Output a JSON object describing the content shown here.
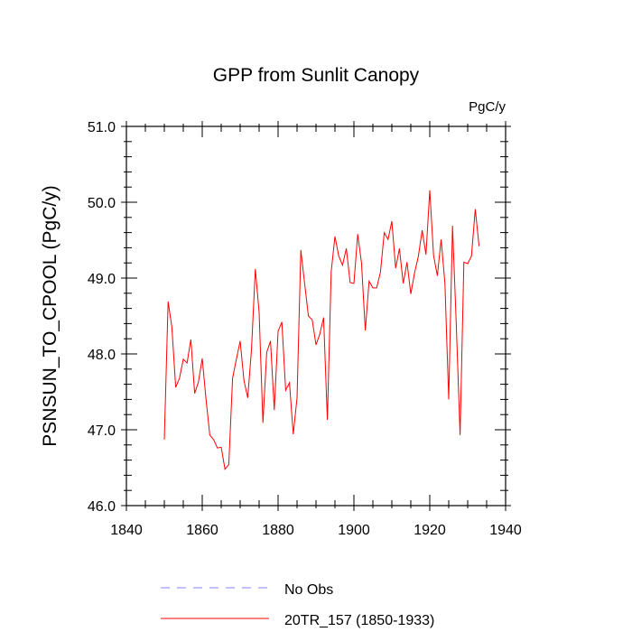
{
  "chart_data": {
    "type": "line",
    "title": "GPP from Sunlit Canopy",
    "units": "PgC/y",
    "ylabel": "PSNSUN_TO_CPOOL  (PgC/y)",
    "xlabel": "",
    "xlim": [
      1840,
      1940
    ],
    "ylim": [
      46.0,
      51.0
    ],
    "xticks": [
      1840,
      1860,
      1880,
      1900,
      1920,
      1940
    ],
    "xtick_labels": [
      "1840",
      "1860",
      "1880",
      "1900",
      "1920",
      "1940"
    ],
    "yticks": [
      46.0,
      47.0,
      48.0,
      49.0,
      50.0,
      51.0
    ],
    "ytick_labels": [
      "46.0",
      "47.0",
      "48.0",
      "49.0",
      "50.0",
      "51.0"
    ],
    "grid": false,
    "legend": {
      "placement": "bottom",
      "entries": [
        {
          "label": "No Obs",
          "color": "#8080ff",
          "style": "dashed"
        },
        {
          "label": "20TR_157 (1850-1933)",
          "color": "#ff0000",
          "style": "solid"
        }
      ]
    },
    "series": [
      {
        "name": "20TR_157 (1850-1933)",
        "color": "#ff0000",
        "x": [
          1850,
          1851,
          1852,
          1853,
          1854,
          1855,
          1856,
          1857,
          1858,
          1859,
          1860,
          1861,
          1862,
          1863,
          1864,
          1865,
          1866,
          1867,
          1868,
          1869,
          1870,
          1871,
          1872,
          1873,
          1874,
          1875,
          1876,
          1877,
          1878,
          1879,
          1880,
          1881,
          1882,
          1883,
          1884,
          1885,
          1886,
          1887,
          1888,
          1889,
          1890,
          1891,
          1892,
          1893,
          1894,
          1895,
          1896,
          1897,
          1898,
          1899,
          1900,
          1901,
          1902,
          1903,
          1904,
          1905,
          1906,
          1907,
          1908,
          1909,
          1910,
          1911,
          1912,
          1913,
          1914,
          1915,
          1916,
          1917,
          1918,
          1919,
          1920,
          1921,
          1922,
          1923,
          1924,
          1925,
          1926,
          1927,
          1928,
          1929,
          1930,
          1931,
          1932,
          1933
        ],
        "values": [
          46.87,
          48.69,
          48.35,
          47.56,
          47.68,
          47.93,
          47.88,
          48.19,
          47.48,
          47.63,
          47.94,
          47.4,
          46.93,
          46.87,
          46.76,
          46.77,
          46.48,
          46.54,
          47.68,
          47.93,
          48.17,
          47.65,
          47.42,
          48.07,
          49.12,
          48.55,
          47.09,
          48.02,
          48.17,
          47.26,
          48.3,
          48.42,
          47.52,
          47.62,
          46.94,
          47.42,
          49.37,
          48.93,
          48.5,
          48.45,
          48.12,
          48.26,
          48.48,
          47.13,
          49.08,
          49.55,
          49.29,
          49.17,
          49.39,
          48.94,
          48.93,
          49.58,
          49.2,
          48.31,
          48.96,
          48.87,
          48.87,
          49.08,
          49.6,
          49.51,
          49.75,
          49.13,
          49.39,
          48.93,
          49.21,
          48.79,
          49.07,
          49.29,
          49.63,
          49.31,
          50.16,
          49.3,
          49.03,
          49.51,
          48.93,
          47.4,
          49.69,
          48.38,
          46.93,
          49.21,
          49.19,
          49.29,
          49.91,
          49.42
        ]
      }
    ]
  }
}
